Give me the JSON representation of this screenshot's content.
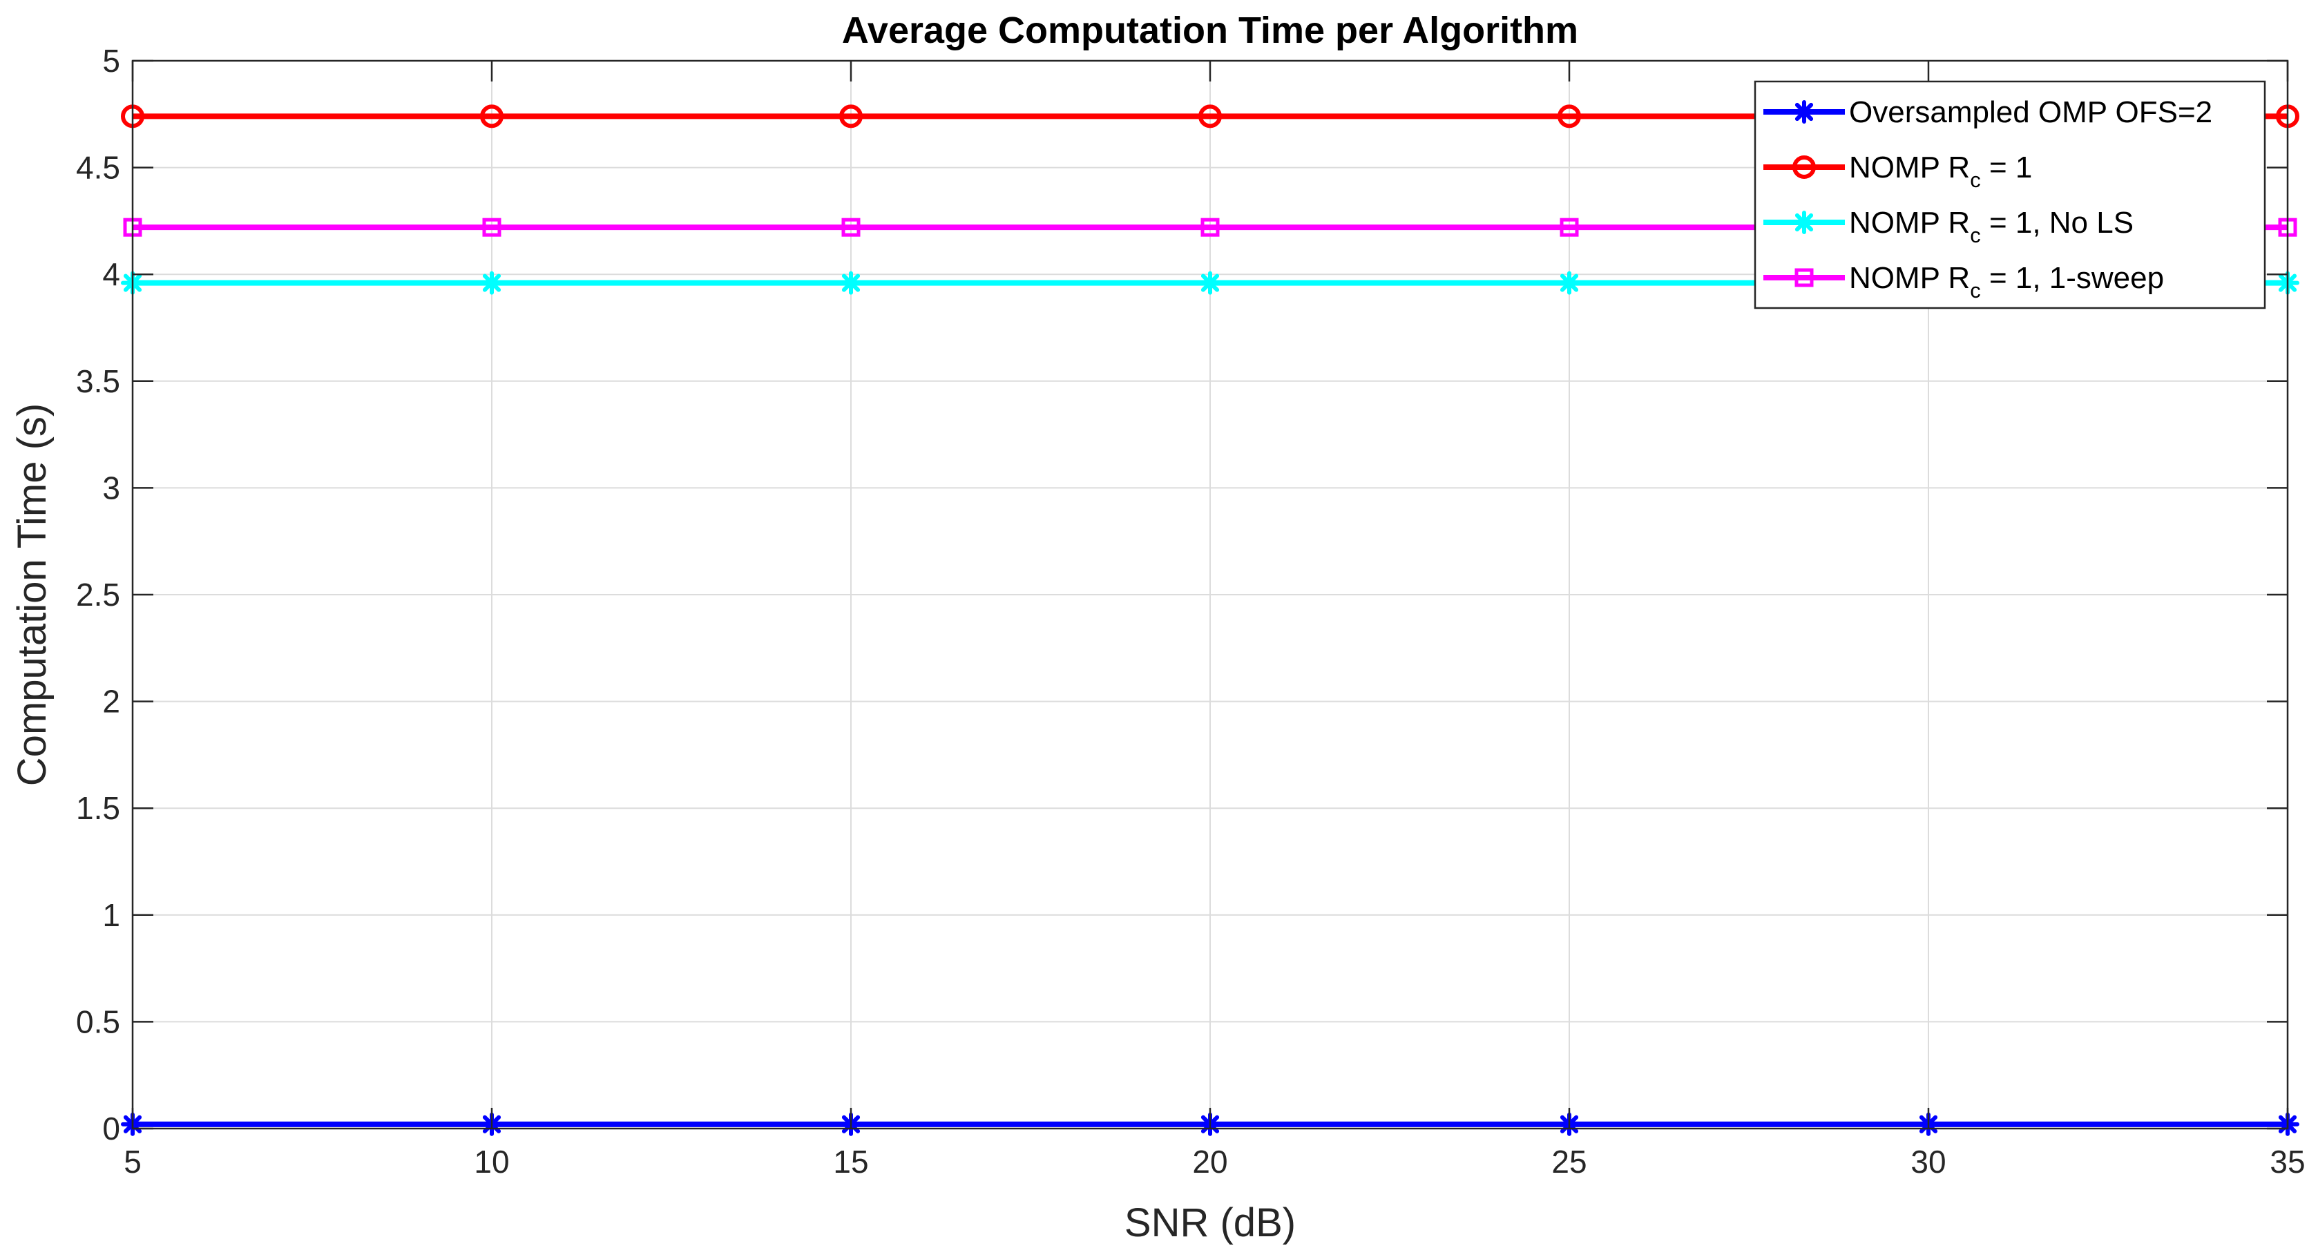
{
  "chart_data": {
    "type": "line",
    "title": "Average Computation Time per Algorithm",
    "xlabel": "SNR (dB)",
    "ylabel": "Computation Time (s)",
    "xlim": [
      5,
      35
    ],
    "ylim": [
      0,
      5
    ],
    "x": [
      5,
      10,
      15,
      20,
      25,
      30,
      35
    ],
    "xticks": [
      5,
      10,
      15,
      20,
      25,
      30,
      35
    ],
    "yticks": [
      0,
      0.5,
      1,
      1.5,
      2,
      2.5,
      3,
      3.5,
      4,
      4.5,
      5
    ],
    "grid": true,
    "legend_position": "top-right",
    "series": [
      {
        "name": "Oversampled OMP OFS=2",
        "legend_parts": [
          {
            "text": "Oversampled OMP OFS=2"
          }
        ],
        "color": "#0000ff",
        "marker": "asterisk",
        "values": [
          0.02,
          0.02,
          0.02,
          0.02,
          0.02,
          0.02,
          0.02
        ]
      },
      {
        "name": "NOMP R_c = 1",
        "legend_parts": [
          {
            "text": " NOMP R"
          },
          {
            "text": "c",
            "sub": true
          },
          {
            "text": " = 1"
          }
        ],
        "color": "#ff0000",
        "marker": "circle",
        "values": [
          4.74,
          4.74,
          4.74,
          4.74,
          4.74,
          4.74,
          4.74
        ]
      },
      {
        "name": "NOMP R_c = 1, No LS",
        "legend_parts": [
          {
            "text": "NOMP R"
          },
          {
            "text": "c",
            "sub": true
          },
          {
            "text": " = 1, No LS"
          }
        ],
        "color": "#00ffff",
        "marker": "asterisk",
        "values": [
          3.96,
          3.96,
          3.96,
          3.96,
          3.96,
          3.96,
          3.96
        ]
      },
      {
        "name": "NOMP R_c = 1, 1-sweep",
        "legend_parts": [
          {
            "text": "NOMP R"
          },
          {
            "text": "c",
            "sub": true
          },
          {
            "text": " = 1, 1-sweep"
          }
        ],
        "color": "#ff00ff",
        "marker": "square",
        "values": [
          4.22,
          4.22,
          4.22,
          4.22,
          4.22,
          4.22,
          4.22
        ]
      }
    ]
  }
}
